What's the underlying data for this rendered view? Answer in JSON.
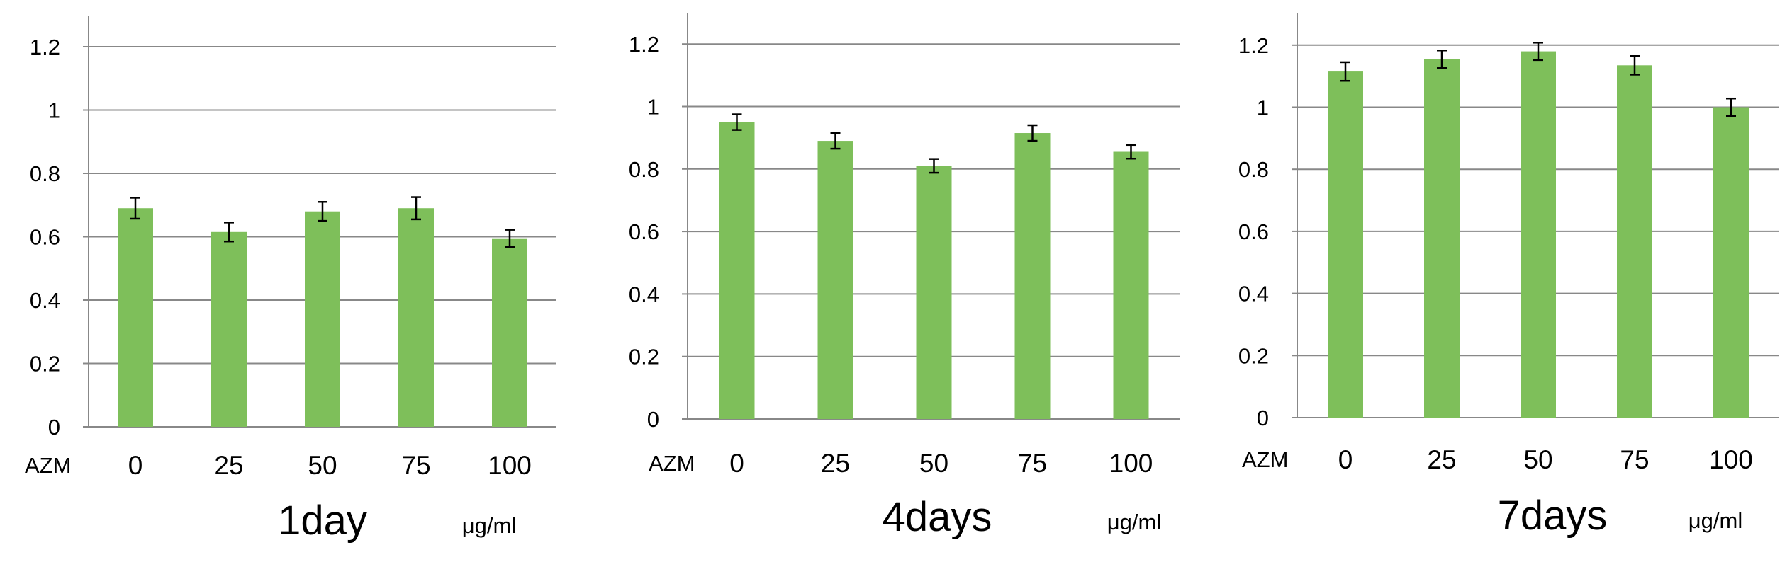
{
  "chart_data": [
    {
      "type": "bar",
      "title": "1day",
      "x_prefix": "AZM",
      "unit": "μg/ml",
      "categories": [
        "0",
        "25",
        "50",
        "75",
        "100"
      ],
      "values": [
        0.69,
        0.615,
        0.68,
        0.69,
        0.595
      ],
      "errors": [
        0.033,
        0.03,
        0.03,
        0.035,
        0.027
      ],
      "yticks": [
        "0",
        "0.2",
        "0.4",
        "0.6",
        "0.8",
        "1",
        "1.2"
      ],
      "ylim": [
        0,
        1.2
      ],
      "grid": true,
      "bar_color": "#7EBF5A"
    },
    {
      "type": "bar",
      "title": "4days",
      "x_prefix": "AZM",
      "unit": "μg/ml",
      "categories": [
        "0",
        "25",
        "50",
        "75",
        "100"
      ],
      "values": [
        0.95,
        0.89,
        0.81,
        0.915,
        0.855
      ],
      "errors": [
        0.025,
        0.025,
        0.022,
        0.025,
        0.022
      ],
      "yticks": [
        "0",
        "0.2",
        "0.4",
        "0.6",
        "0.8",
        "1",
        "1.2"
      ],
      "ylim": [
        0,
        1.2
      ],
      "grid": true,
      "bar_color": "#7EBF5A"
    },
    {
      "type": "bar",
      "title": "7days",
      "x_prefix": "AZM",
      "unit": "μg/ml",
      "categories": [
        "0",
        "25",
        "50",
        "75",
        "100"
      ],
      "values": [
        1.115,
        1.155,
        1.18,
        1.135,
        1.0
      ],
      "errors": [
        0.03,
        0.028,
        0.028,
        0.03,
        0.028
      ],
      "yticks": [
        "0",
        "0.2",
        "0.4",
        "0.6",
        "0.8",
        "1",
        "1.2"
      ],
      "ylim": [
        0,
        1.2
      ],
      "grid": true,
      "bar_color": "#7EBF5A"
    }
  ],
  "colors": {
    "bar": "#7EBF5A",
    "grid": "#888888",
    "axis": "#888888",
    "error_bar": "#000000"
  }
}
